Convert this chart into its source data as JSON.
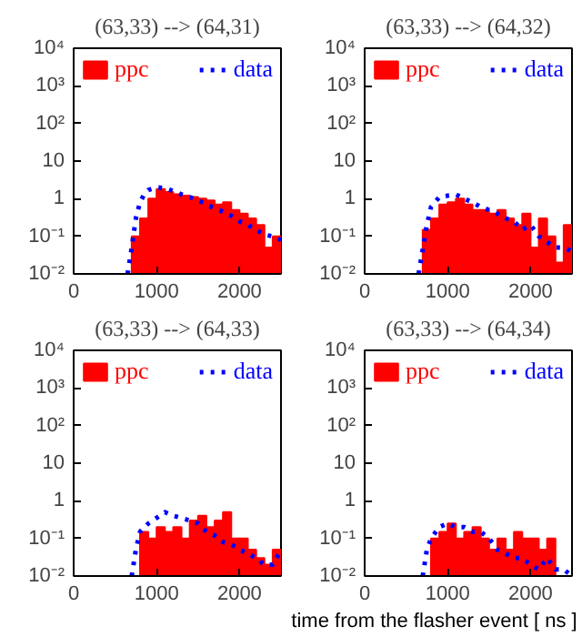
{
  "chart_data": [
    {
      "type": "line",
      "title": "(63,33) --> (64,31)",
      "log": "y",
      "grid": false,
      "legend": "top",
      "xlim": [
        0,
        2500
      ],
      "xticks": [
        0,
        1000,
        2000
      ],
      "ylim": [
        0.01,
        10000
      ],
      "yticks": [
        {
          "value": 0.01,
          "label": "10⁻²"
        },
        {
          "value": 0.1,
          "label": "10⁻¹"
        },
        1,
        10,
        {
          "value": 100,
          "label": "10²"
        },
        {
          "value": 1000,
          "label": "10³"
        },
        {
          "value": 10000,
          "label": "10⁴"
        }
      ],
      "series": [
        {
          "name": "ppc",
          "type": "bar",
          "color": "#ff0000",
          "x": [
            700,
            800,
            900,
            1000,
            1100,
            1200,
            1300,
            1400,
            1500,
            1600,
            1700,
            1800,
            1900,
            2000,
            2100,
            2200,
            2300,
            2400
          ],
          "values": [
            0.1,
            0.3,
            1.0,
            1.8,
            1.5,
            1.3,
            1.2,
            1.1,
            1.0,
            0.9,
            0.7,
            0.8,
            0.5,
            0.4,
            0.3,
            0.2,
            0.05,
            0.1
          ]
        },
        {
          "name": "data",
          "line_style": "dotted",
          "color": "#0000ff",
          "x": [
            650,
            700,
            750,
            800,
            850,
            900,
            1000,
            1100,
            1200,
            1300,
            1400,
            1500,
            1600,
            1700,
            1800,
            1900,
            2000,
            2100,
            2200,
            2300,
            2400,
            2500
          ],
          "values": [
            0.01,
            0.05,
            0.3,
            0.8,
            1.3,
            1.7,
            2.0,
            1.9,
            1.6,
            1.3,
            1.1,
            0.9,
            0.7,
            0.55,
            0.45,
            0.35,
            0.25,
            0.2,
            0.15,
            0.11,
            0.1,
            0.08
          ]
        }
      ]
    },
    {
      "type": "line",
      "title": "(63,33) --> (64,32)",
      "log": "y",
      "grid": false,
      "legend": "top",
      "xlim": [
        0,
        2500
      ],
      "xticks": [
        0,
        1000,
        2000
      ],
      "ylim": [
        0.01,
        10000
      ],
      "yticks": [
        {
          "value": 0.01,
          "label": "10⁻²"
        },
        {
          "value": 0.1,
          "label": "10⁻¹"
        },
        1,
        10,
        {
          "value": 100,
          "label": "10²"
        },
        {
          "value": 1000,
          "label": "10³"
        },
        {
          "value": 10000,
          "label": "10⁴"
        }
      ],
      "series": [
        {
          "name": "ppc",
          "type": "bar",
          "color": "#ff0000",
          "x": [
            700,
            800,
            900,
            1000,
            1100,
            1200,
            1300,
            1400,
            1500,
            1600,
            1700,
            1800,
            1900,
            2000,
            2100,
            2200,
            2300,
            2400
          ],
          "values": [
            0.15,
            0.3,
            0.7,
            0.8,
            1.0,
            0.7,
            0.5,
            0.5,
            0.4,
            0.5,
            0.3,
            0.2,
            0.4,
            0.05,
            0.3,
            0.1,
            0.02,
            0.2
          ]
        },
        {
          "name": "data",
          "line_style": "dotted",
          "color": "#0000ff",
          "x": [
            650,
            750,
            800,
            900,
            1000,
            1100,
            1200,
            1300,
            1400,
            1500,
            1600,
            1700,
            1800,
            1900,
            2000,
            2100,
            2200,
            2300,
            2400,
            2500
          ],
          "values": [
            0.01,
            0.2,
            0.6,
            1.1,
            1.2,
            1.3,
            1.0,
            0.8,
            0.6,
            0.5,
            0.4,
            0.3,
            0.25,
            0.15,
            0.2,
            0.1,
            0.07,
            0.05,
            0.05,
            0.04
          ]
        }
      ]
    },
    {
      "type": "line",
      "title": "(63,33) --> (64,33)",
      "log": "y",
      "grid": false,
      "legend": "top",
      "xlim": [
        0,
        2500
      ],
      "xticks": [
        0,
        1000,
        2000
      ],
      "ylim": [
        0.01,
        10000
      ],
      "yticks": [
        {
          "value": 0.01,
          "label": "10⁻²"
        },
        {
          "value": 0.1,
          "label": "10⁻¹"
        },
        1,
        10,
        {
          "value": 100,
          "label": "10²"
        },
        {
          "value": 1000,
          "label": "10³"
        },
        {
          "value": 10000,
          "label": "10⁴"
        }
      ],
      "series": [
        {
          "name": "ppc",
          "type": "bar",
          "color": "#ff0000",
          "x": [
            800,
            900,
            1000,
            1100,
            1200,
            1300,
            1400,
            1500,
            1600,
            1700,
            1800,
            1900,
            2000,
            2100,
            2200,
            2300,
            2400
          ],
          "values": [
            0.15,
            0.1,
            0.2,
            0.15,
            0.2,
            0.1,
            0.3,
            0.4,
            0.2,
            0.3,
            0.5,
            0.1,
            0.1,
            0.05,
            0.03,
            0.02,
            0.05
          ]
        },
        {
          "name": "data",
          "line_style": "dotted",
          "color": "#0000ff",
          "x": [
            700,
            750,
            800,
            900,
            1000,
            1100,
            1200,
            1300,
            1400,
            1500,
            1600,
            1700,
            1800,
            1900,
            2000,
            2100,
            2200,
            2300,
            2400,
            2500
          ],
          "values": [
            0.01,
            0.05,
            0.15,
            0.25,
            0.35,
            0.5,
            0.4,
            0.35,
            0.3,
            0.25,
            0.15,
            0.12,
            0.08,
            0.07,
            0.05,
            0.04,
            0.03,
            0.02,
            0.02,
            0.05
          ]
        }
      ]
    },
    {
      "type": "line",
      "title": "(63,33) --> (64,34)",
      "xlabel": "time from the flasher event [ ns ]",
      "log": "y",
      "grid": false,
      "legend": "top",
      "xlim": [
        0,
        2500
      ],
      "xticks": [
        0,
        1000,
        2000
      ],
      "ylim": [
        0.01,
        10000
      ],
      "yticks": [
        {
          "value": 0.01,
          "label": "10⁻²"
        },
        {
          "value": 0.1,
          "label": "10⁻¹"
        },
        1,
        10,
        {
          "value": 100,
          "label": "10²"
        },
        {
          "value": 1000,
          "label": "10³"
        },
        {
          "value": 10000,
          "label": "10⁴"
        }
      ],
      "series": [
        {
          "name": "ppc",
          "type": "bar",
          "color": "#ff0000",
          "x": [
            800,
            900,
            1000,
            1100,
            1200,
            1300,
            1400,
            1500,
            1600,
            1700,
            1800,
            1900,
            2000,
            2100,
            2200
          ],
          "values": [
            0.1,
            0.15,
            0.25,
            0.1,
            0.15,
            0.2,
            0.1,
            0.05,
            0.1,
            0.05,
            0.15,
            0.1,
            0.1,
            0.05,
            0.1
          ]
        },
        {
          "name": "data",
          "line_style": "dotted",
          "color": "#0000ff",
          "x": [
            700,
            750,
            800,
            900,
            1000,
            1100,
            1200,
            1300,
            1400,
            1500,
            1600,
            1700,
            1800,
            1900,
            2000,
            2100,
            2200,
            2300,
            2400,
            2500
          ],
          "values": [
            0.01,
            0.05,
            0.1,
            0.2,
            0.25,
            0.2,
            0.2,
            0.15,
            0.15,
            0.1,
            0.05,
            0.04,
            0.03,
            0.03,
            0.02,
            0.015,
            0.03,
            0.015,
            0.015,
            0.01
          ]
        }
      ]
    }
  ]
}
